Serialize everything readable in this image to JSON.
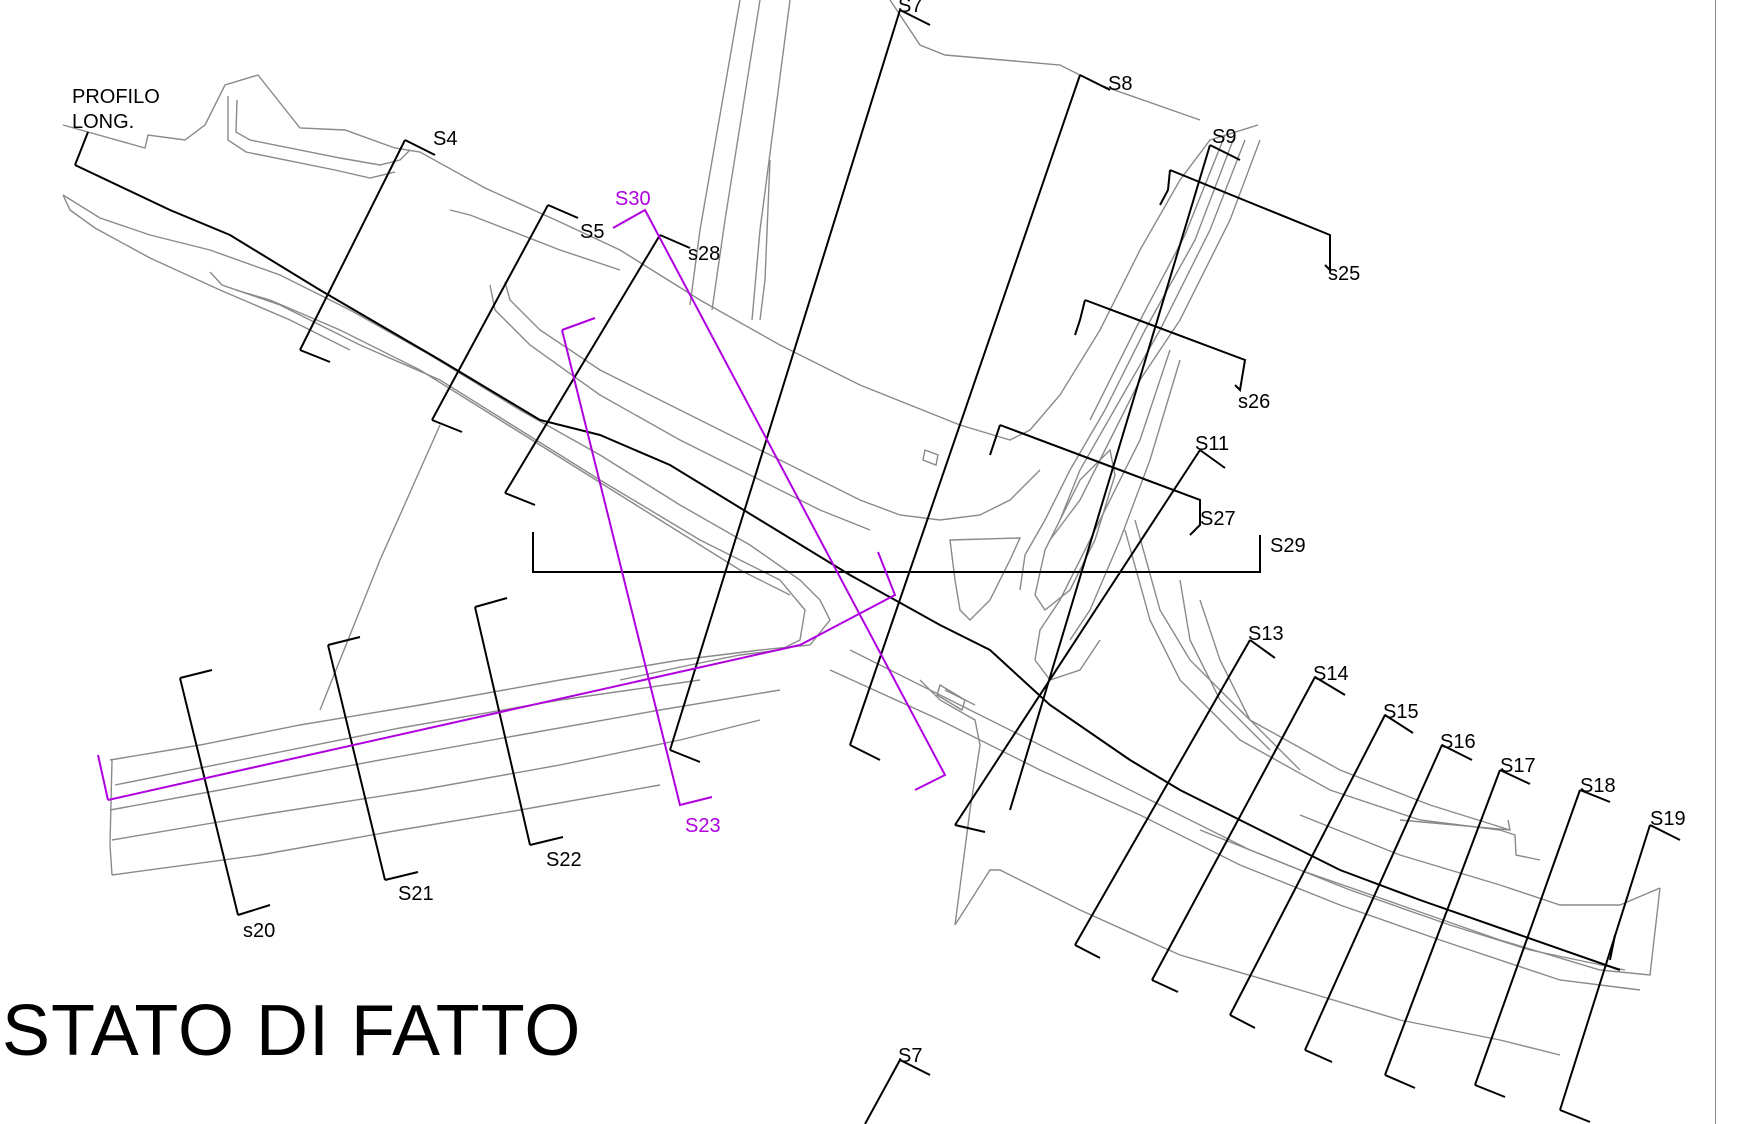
{
  "title": "STATO DI FATTO",
  "profile_label": [
    "PROFILO",
    "LONG."
  ],
  "sections": {
    "s4": "S4",
    "s5": "S5",
    "s7_top": "S7",
    "s7_bottom": "S7",
    "s8": "S8",
    "s9": "S9",
    "s11": "S11",
    "s13": "S13",
    "s14": "S14",
    "s15": "S15",
    "s16": "S16",
    "s17": "S17",
    "s18": "S18",
    "s19": "S19",
    "s20": "s20",
    "s21": "S21",
    "s22": "S22",
    "s23": "S23",
    "s25": "s25",
    "s26": "s26",
    "s27": "S27",
    "s28": "s28",
    "s29": "S29",
    "s30": "S30"
  },
  "colors": {
    "section_line": "#000000",
    "highlight_section": "#b000e0",
    "road_outline": "#8a8a8a"
  }
}
